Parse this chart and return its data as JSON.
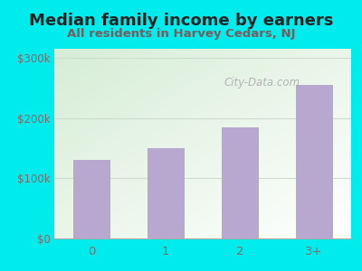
{
  "categories": [
    "0",
    "1",
    "2",
    "3+"
  ],
  "values": [
    130000,
    150000,
    185000,
    255000
  ],
  "bar_color": "#b8a8d0",
  "title": "Median family income by earners",
  "subtitle": "All residents in Harvey Cedars, NJ",
  "title_color": "#222222",
  "subtitle_color": "#7a5c5c",
  "ylabel_ticks": [
    "$0",
    "$100k",
    "$200k",
    "$300k"
  ],
  "ytick_vals": [
    0,
    100000,
    200000,
    300000
  ],
  "ylim": [
    0,
    315000
  ],
  "bg_outer": "#00ecec",
  "bg_plot_topleft": "#d6edd6",
  "bg_plot_bottomright": "#ffffff",
  "watermark": "City-Data.com",
  "watermark_color": "#aaaaaa",
  "grid_color": "#ccddcc",
  "tick_label_color": "#886666",
  "title_fontsize": 13,
  "subtitle_fontsize": 9.5
}
